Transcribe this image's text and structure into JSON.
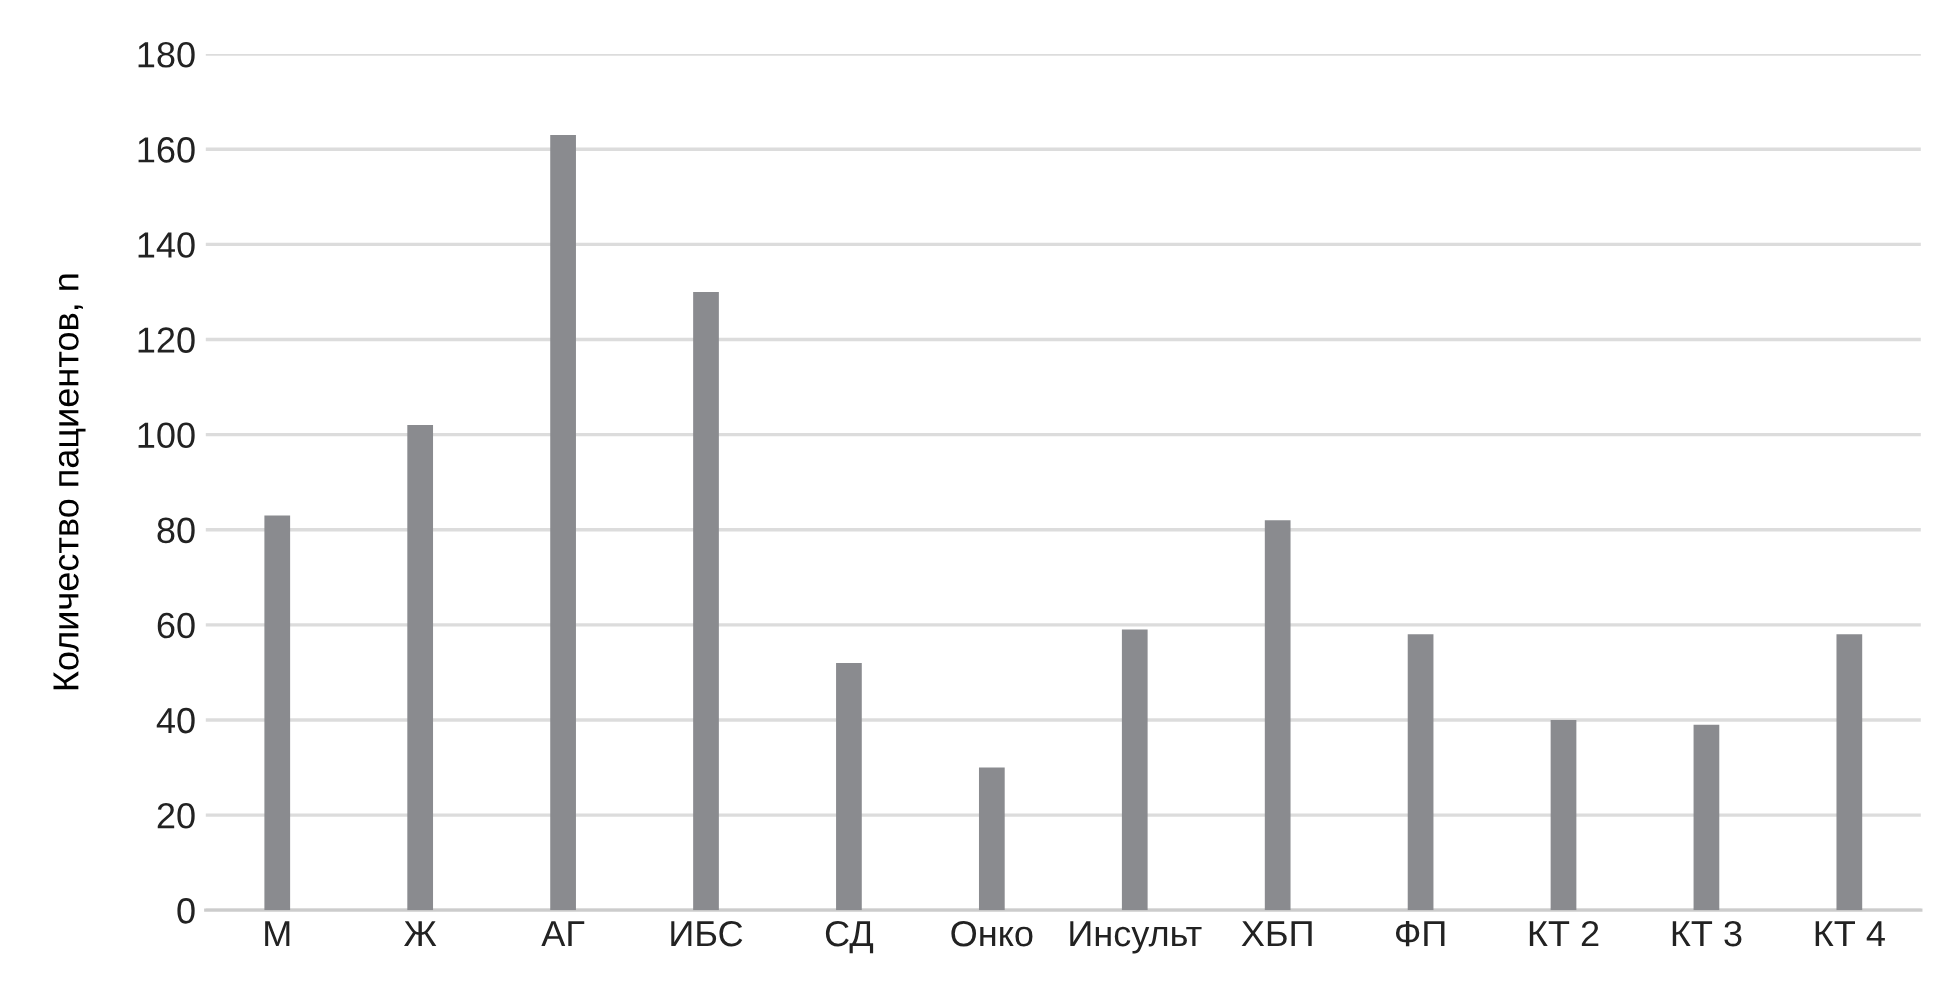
{
  "chart_data": {
    "type": "bar",
    "ylabel": "Количество пациентов, n",
    "categories": [
      "М",
      "Ж",
      "АГ",
      "ИБС",
      "СД",
      "Онко",
      "Инсульт",
      "ХБП",
      "ФП",
      "КТ 2",
      "КТ 3",
      "КТ 4"
    ],
    "values": [
      83,
      102,
      163,
      130,
      52,
      30,
      59,
      82,
      58,
      40,
      39,
      58
    ],
    "color": "#8a8b8f",
    "ylim": [
      0,
      180
    ],
    "yticks": [
      0,
      20,
      40,
      60,
      80,
      100,
      120,
      140,
      160,
      180
    ],
    "grid": "y",
    "legend": false
  }
}
